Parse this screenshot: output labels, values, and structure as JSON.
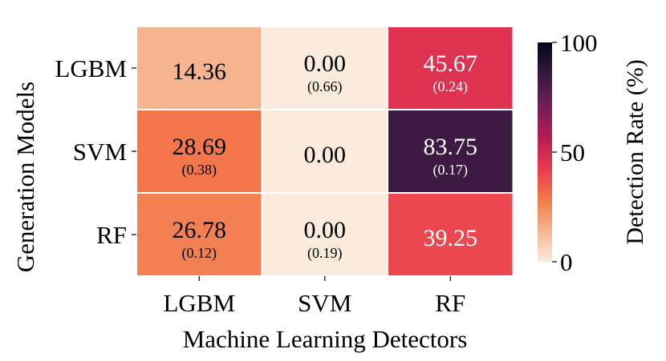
{
  "chart_data": {
    "type": "heatmap",
    "title": "",
    "xlabel": "Machine Learning Detectors",
    "ylabel": "Generation Models",
    "x_categories": [
      "LGBM",
      "SVM",
      "RF"
    ],
    "y_categories": [
      "LGBM",
      "SVM",
      "RF"
    ],
    "cells": [
      [
        {
          "value": 14.36,
          "label": "14.36",
          "sub": ""
        },
        {
          "value": 0.0,
          "label": "0.00",
          "sub": "(0.66)"
        },
        {
          "value": 45.67,
          "label": "45.67",
          "sub": "(0.24)"
        }
      ],
      [
        {
          "value": 28.69,
          "label": "28.69",
          "sub": "(0.38)"
        },
        {
          "value": 0.0,
          "label": "0.00",
          "sub": ""
        },
        {
          "value": 83.75,
          "label": "83.75",
          "sub": "(0.17)"
        }
      ],
      [
        {
          "value": 26.78,
          "label": "26.78",
          "sub": "(0.12)"
        },
        {
          "value": 0.0,
          "label": "0.00",
          "sub": "(0.19)"
        },
        {
          "value": 39.25,
          "label": "39.25",
          "sub": ""
        }
      ]
    ],
    "colorbar": {
      "label": "Detection Rate (%)",
      "range": [
        0,
        100
      ],
      "ticks": [
        "0",
        "50",
        "100"
      ],
      "colormap": "rocket_r",
      "stops": [
        "#faebdd",
        "#f6b48e",
        "#f3784a",
        "#e7384f",
        "#b31b56",
        "#701f57",
        "#35193e",
        "#03051a"
      ]
    }
  }
}
